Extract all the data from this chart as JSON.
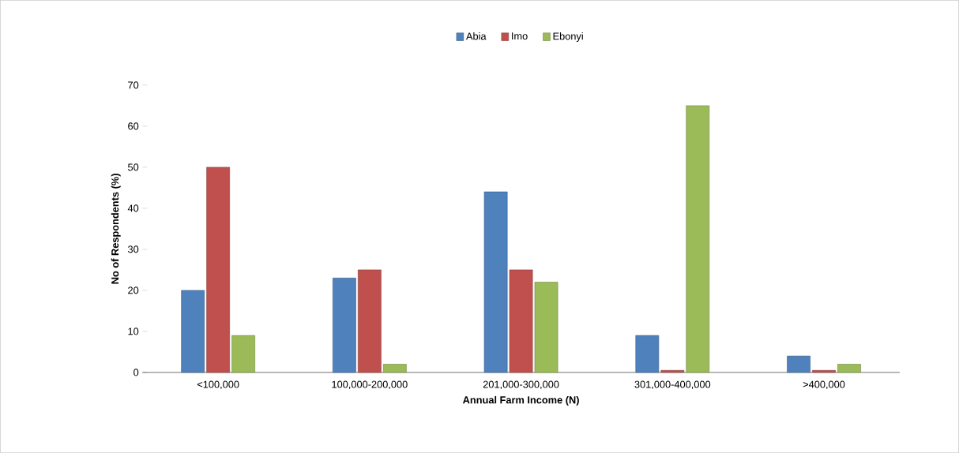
{
  "chart_data": {
    "type": "bar",
    "xlabel": "Annual Farm Income (N)",
    "ylabel": "No of Respondents (%)",
    "categories": [
      "<100,000",
      "100,000-200,000",
      "201,000-300,000",
      "301,000-400,000",
      ">400,000"
    ],
    "series": [
      {
        "name": "Abia",
        "color": "#4f81bd",
        "values": [
          20,
          23,
          44,
          9,
          4
        ]
      },
      {
        "name": "Imo",
        "color": "#c0504d",
        "values": [
          50,
          25,
          25,
          0.5,
          0.5
        ]
      },
      {
        "name": "Ebonyi",
        "color": "#9bbb59",
        "values": [
          9,
          2,
          22,
          65,
          2
        ]
      }
    ],
    "ylim": [
      0,
      70
    ],
    "yticks": [
      0,
      10,
      20,
      30,
      40,
      50,
      60,
      70
    ],
    "legend": "top",
    "grid": false
  }
}
